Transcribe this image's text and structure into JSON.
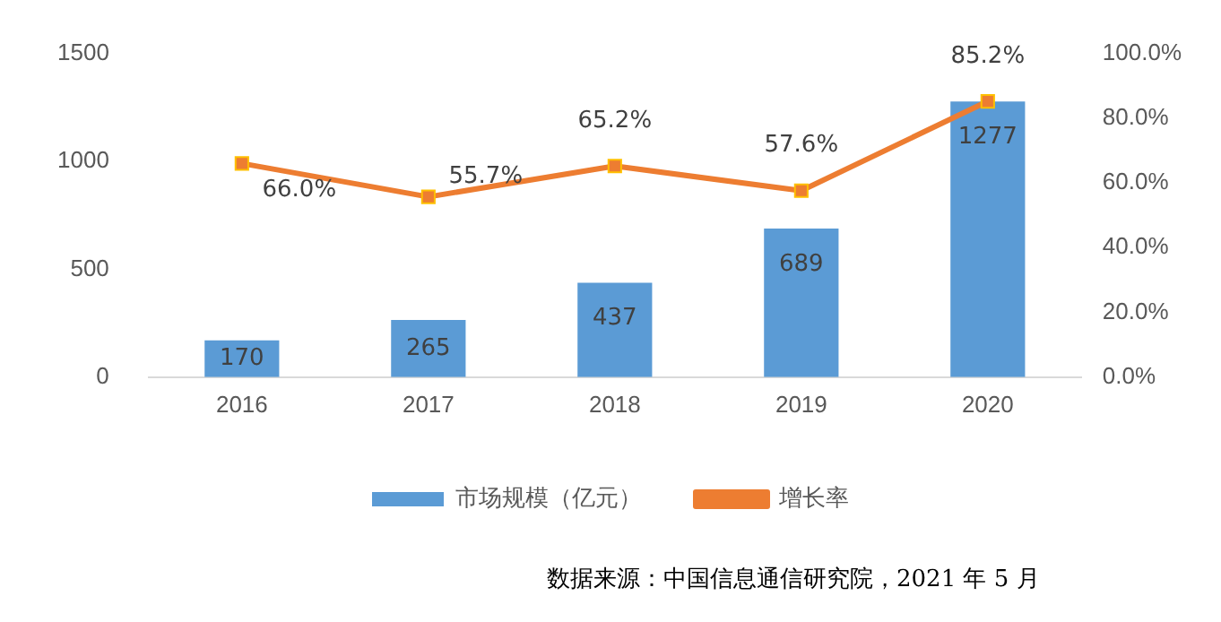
{
  "chart_data": {
    "type": "bar",
    "categories": [
      "2016",
      "2017",
      "2018",
      "2019",
      "2020"
    ],
    "series": [
      {
        "name": "市场规模（亿元）",
        "color": "#5b9bd5",
        "values": [
          170,
          265,
          437,
          689,
          1277
        ],
        "value_labels": [
          "170",
          "265",
          "437",
          "689",
          "1277"
        ]
      },
      {
        "name": "增长率",
        "type": "line",
        "axis": "y2",
        "color": "#ed7d31",
        "marker": "square",
        "values": [
          66.0,
          55.7,
          65.2,
          57.6,
          85.2
        ],
        "value_labels": [
          "66.0%",
          "55.7%",
          "65.2%",
          "57.6%",
          "85.2%"
        ]
      }
    ],
    "ylim": [
      0,
      1500
    ],
    "yticks": [
      0,
      500,
      1000,
      1500
    ],
    "y2lim": [
      0,
      100
    ],
    "y2ticks": [
      {
        "value": 0,
        "label": "0.0%"
      },
      {
        "value": 20,
        "label": "20.0%"
      },
      {
        "value": 40,
        "label": "40.0%"
      },
      {
        "value": 60,
        "label": "60.0%"
      },
      {
        "value": 80,
        "label": "80.0%"
      },
      {
        "value": 100,
        "label": "100.0%"
      }
    ],
    "grid": false,
    "legend": "bottom",
    "annotations": [
      "数据来源：中国信息通信研究院，2021 年 5 月"
    ]
  }
}
